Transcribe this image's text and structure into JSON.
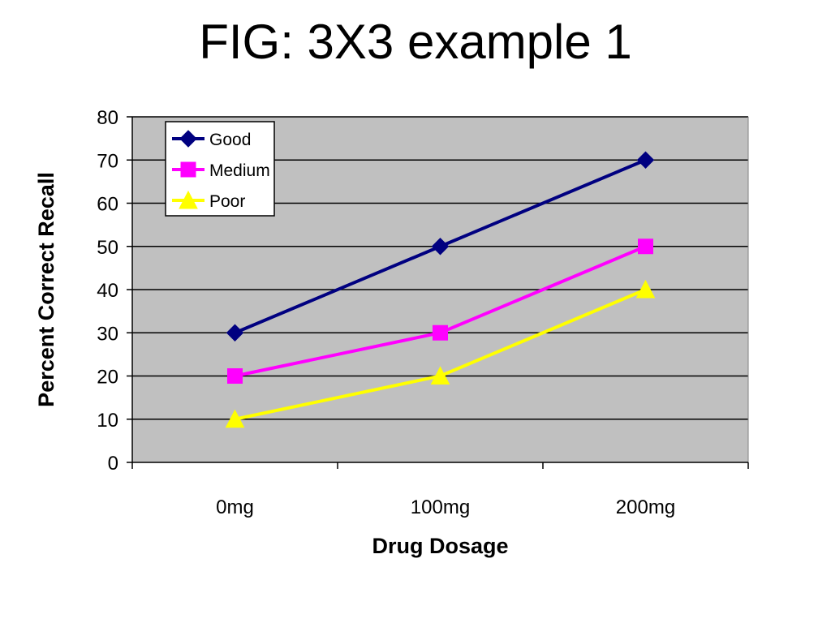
{
  "title": "FIG: 3X3 example 1",
  "chart_data": {
    "type": "line",
    "categories": [
      "0mg",
      "100mg",
      "200mg"
    ],
    "xlabel": "Drug Dosage",
    "ylabel": "Percent Correct Recall",
    "ylim": [
      0,
      80
    ],
    "yticks": [
      0,
      10,
      20,
      30,
      40,
      50,
      60,
      70,
      80
    ],
    "grid": true,
    "plot_background": "#c0c0c0",
    "legend_position": "top-left",
    "series": [
      {
        "name": "Good",
        "values": [
          30,
          50,
          70
        ],
        "color": "#000080",
        "marker": "diamond"
      },
      {
        "name": "Medium",
        "values": [
          20,
          30,
          50
        ],
        "color": "#ff00ff",
        "marker": "square"
      },
      {
        "name": "Poor",
        "values": [
          10,
          20,
          40
        ],
        "color": "#ffff00",
        "marker": "triangle"
      }
    ]
  }
}
